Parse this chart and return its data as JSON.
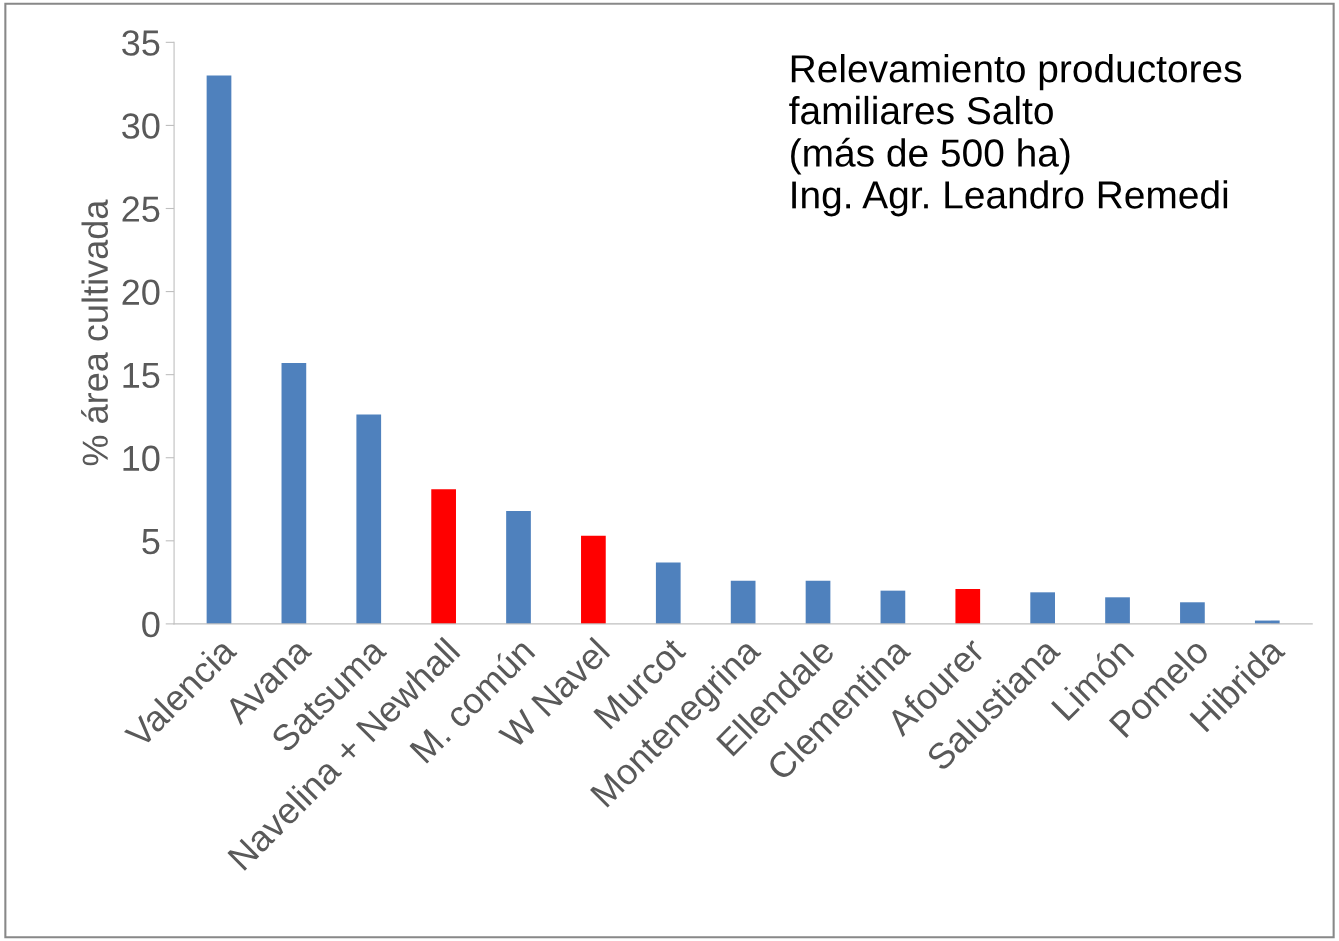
{
  "chart_data": {
    "type": "bar",
    "ylabel": "% área cultivada",
    "categories": [
      "Valencia",
      "Avana",
      "Satsuma",
      "Navelina + Newhall",
      "M. común",
      "W Navel",
      "Murcot",
      "Montenegrina",
      "Ellendale",
      "Clementina",
      "Afourer",
      "Salustiana",
      "Limón",
      "Pomelo",
      "Hibrida"
    ],
    "values": [
      33.0,
      15.7,
      12.6,
      8.1,
      6.8,
      5.3,
      3.7,
      2.6,
      2.6,
      2.0,
      2.1,
      1.9,
      1.6,
      1.3,
      0.2
    ],
    "colors": [
      "#4f81bd",
      "#4f81bd",
      "#4f81bd",
      "#ff0000",
      "#4f81bd",
      "#ff0000",
      "#4f81bd",
      "#4f81bd",
      "#4f81bd",
      "#4f81bd",
      "#ff0000",
      "#4f81bd",
      "#4f81bd",
      "#4f81bd",
      "#4f81bd"
    ],
    "ylim": [
      0,
      35
    ],
    "yticks": [
      0,
      5,
      10,
      15,
      20,
      25,
      30,
      35
    ],
    "grid": false,
    "legend": false,
    "annotations": [
      "Relevamiento productores\nfamiliares Salto\n(más de 500 ha)\nIng. Agr. Leandro Remedi"
    ]
  }
}
